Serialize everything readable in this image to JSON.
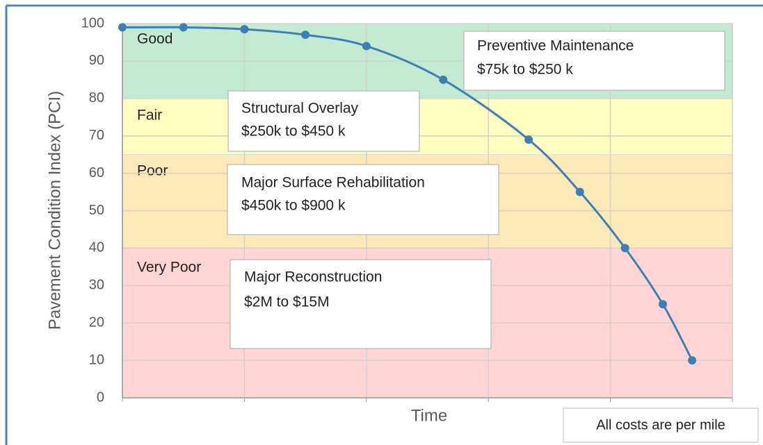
{
  "chart_data": {
    "type": "line",
    "y_axis_label": "Pavement Condition Index (PCI)",
    "x_axis_label": "Time",
    "footnote": "All costs are per mile",
    "xlim": [
      0,
      5
    ],
    "xticks": [
      0,
      1,
      2,
      3,
      4,
      5
    ],
    "ylim": [
      0,
      100
    ],
    "yticks": [
      0,
      10,
      20,
      30,
      40,
      50,
      60,
      70,
      80,
      90,
      100
    ],
    "grid": true,
    "bands": [
      {
        "name": "Good",
        "from": 80,
        "to": 100,
        "color": "#c3ead2"
      },
      {
        "name": "Fair",
        "from": 65,
        "to": 80,
        "color": "#ffffc2"
      },
      {
        "name": "Poor",
        "from": 40,
        "to": 65,
        "color": "#fde9b8"
      },
      {
        "name": "Very Poor",
        "from": 0,
        "to": 40,
        "color": "#ffd5d6"
      }
    ],
    "annotations": [
      {
        "lines": [
          "Preventive Maintenance",
          "$75k to $250 k"
        ]
      },
      {
        "lines": [
          "Structural Overlay",
          "$250k to $450 k"
        ]
      },
      {
        "lines": [
          "Major Surface Rehabilitation",
          "$450k to $900 k"
        ]
      },
      {
        "lines": [
          "Major Reconstruction",
          "$2M to $15M"
        ]
      }
    ],
    "series": [
      {
        "color": "#3d7fb2",
        "x": [
          0,
          0.5,
          1.0,
          1.5,
          2.0,
          2.63,
          3.33,
          3.75,
          4.12,
          4.43,
          4.67
        ],
        "values": [
          99,
          99,
          98.5,
          97,
          94,
          85,
          69,
          55,
          40,
          25,
          10
        ]
      }
    ]
  }
}
